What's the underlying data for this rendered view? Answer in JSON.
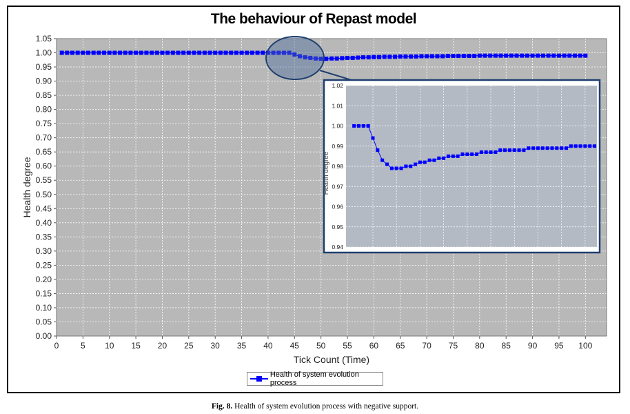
{
  "chart_data": [
    {
      "type": "line",
      "title": "The behaviour of Repast model",
      "xlabel": "Tick Count (Time)",
      "ylabel": "Health degree",
      "xlim": [
        0,
        104
      ],
      "ylim": [
        0,
        1.05
      ],
      "x_ticks": [
        0,
        5,
        10,
        15,
        20,
        25,
        30,
        35,
        40,
        45,
        50,
        55,
        60,
        65,
        70,
        75,
        80,
        85,
        90,
        95,
        100
      ],
      "y_ticks": [
        0.0,
        0.05,
        0.1,
        0.15,
        0.2,
        0.25,
        0.3,
        0.35,
        0.4,
        0.45,
        0.5,
        0.55,
        0.6,
        0.65,
        0.7,
        0.75,
        0.8,
        0.85,
        0.9,
        0.95,
        1.0,
        1.05
      ],
      "y_tick_labels": [
        "0.00",
        "0.05",
        "0.10",
        "0.15",
        "0.20",
        "0.25",
        "0.30",
        "0.35",
        "0.40",
        "0.45",
        "0.50",
        "0.55",
        "0.60",
        "0.65",
        "0.70",
        "0.75",
        "0.80",
        "0.85",
        "0.90",
        "0.95",
        "1.00",
        "1.05"
      ],
      "grid": true,
      "legend_position": "bottom-center",
      "series": [
        {
          "name": "Health of system evolution process",
          "color": "#0000ff",
          "x": [
            1,
            2,
            3,
            4,
            5,
            6,
            7,
            8,
            9,
            10,
            11,
            12,
            13,
            14,
            15,
            16,
            17,
            18,
            19,
            20,
            21,
            22,
            23,
            24,
            25,
            26,
            27,
            28,
            29,
            30,
            31,
            32,
            33,
            34,
            35,
            36,
            37,
            38,
            39,
            40,
            41,
            42,
            43,
            44,
            45,
            46,
            47,
            48,
            49,
            50,
            51,
            52,
            53,
            54,
            55,
            56,
            57,
            58,
            59,
            60,
            61,
            62,
            63,
            64,
            65,
            66,
            67,
            68,
            69,
            70,
            71,
            72,
            73,
            74,
            75,
            76,
            77,
            78,
            79,
            80,
            81,
            82,
            83,
            84,
            85,
            86,
            87,
            88,
            89,
            90,
            91,
            92,
            93,
            94,
            95,
            96,
            97,
            98,
            99,
            100
          ],
          "y": [
            1.0,
            1.0,
            1.0,
            1.0,
            1.0,
            1.0,
            1.0,
            1.0,
            1.0,
            1.0,
            1.0,
            1.0,
            1.0,
            1.0,
            1.0,
            1.0,
            1.0,
            1.0,
            1.0,
            1.0,
            1.0,
            1.0,
            1.0,
            1.0,
            1.0,
            1.0,
            1.0,
            1.0,
            1.0,
            1.0,
            1.0,
            1.0,
            1.0,
            1.0,
            1.0,
            1.0,
            1.0,
            1.0,
            1.0,
            1.0,
            1.0,
            1.0,
            1.0,
            1.0,
            0.994,
            0.988,
            0.984,
            0.982,
            0.98,
            0.979,
            0.979,
            0.98,
            0.98,
            0.981,
            0.982,
            0.982,
            0.983,
            0.984,
            0.984,
            0.985,
            0.985,
            0.986,
            0.986,
            0.986,
            0.987,
            0.987,
            0.987,
            0.987,
            0.988,
            0.988,
            0.988,
            0.988,
            0.988,
            0.989,
            0.989,
            0.989,
            0.989,
            0.989,
            0.989,
            0.99,
            0.99,
            0.99,
            0.99,
            0.99,
            0.99,
            0.99,
            0.99,
            0.99,
            0.99,
            0.99,
            0.99,
            0.99,
            0.99,
            0.99,
            0.99,
            0.99,
            0.99,
            0.99,
            0.99,
            0.99
          ]
        }
      ]
    },
    {
      "type": "line",
      "title": "",
      "xlabel": "",
      "ylabel": "Health degree",
      "ylim": [
        0.94,
        1.02
      ],
      "y_ticks": [
        0.94,
        0.95,
        0.96,
        0.97,
        0.98,
        0.99,
        1.0,
        1.01,
        1.02
      ],
      "y_tick_labels": [
        "0.94",
        "0.95",
        "0.96",
        "0.97",
        "0.98",
        "0.99",
        "1.00",
        "1.01",
        "1.02"
      ],
      "grid": true,
      "series": [
        {
          "color": "#0000ff",
          "x": [
            41,
            42,
            43,
            44,
            45,
            46,
            47,
            48,
            49,
            50,
            51,
            52,
            53,
            54,
            55,
            56,
            57,
            58,
            59,
            60,
            61,
            62,
            63,
            64,
            65,
            66,
            67,
            68,
            69,
            70,
            71,
            72,
            73,
            74,
            75,
            76,
            77,
            78,
            79,
            80,
            81,
            82,
            83,
            84,
            85,
            86,
            87,
            88,
            89,
            90,
            91,
            92
          ],
          "y": [
            1.0,
            1.0,
            1.0,
            1.0,
            0.994,
            0.988,
            0.983,
            0.981,
            0.979,
            0.979,
            0.979,
            0.98,
            0.98,
            0.981,
            0.982,
            0.982,
            0.983,
            0.983,
            0.984,
            0.984,
            0.985,
            0.985,
            0.985,
            0.986,
            0.986,
            0.986,
            0.986,
            0.987,
            0.987,
            0.987,
            0.987,
            0.988,
            0.988,
            0.988,
            0.988,
            0.988,
            0.988,
            0.989,
            0.989,
            0.989,
            0.989,
            0.989,
            0.989,
            0.989,
            0.989,
            0.989,
            0.99,
            0.99,
            0.99,
            0.99,
            0.99,
            0.99
          ]
        }
      ]
    }
  ],
  "legend": {
    "label": "Health of system evolution process"
  },
  "caption": {
    "label": "Fig. 8.",
    "text": "Health of system evolution process with negative support."
  },
  "colors": {
    "plot_bg": "#b8b8b8",
    "inset_bg": "#b4bac4",
    "inset_border": "#1f3f6e",
    "series": "#0000ff"
  }
}
